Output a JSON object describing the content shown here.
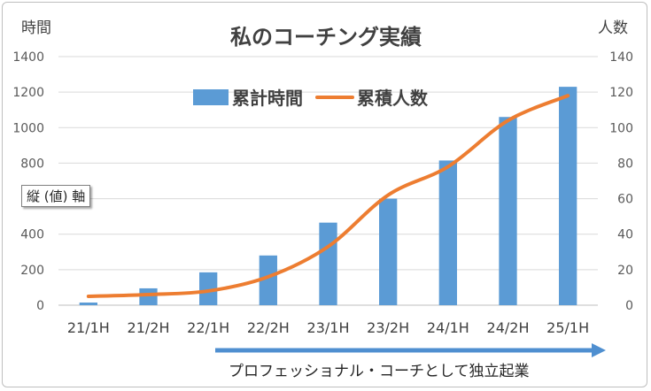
{
  "chart_data": {
    "type": "bar",
    "title": "私のコーチング実績",
    "left_axis_label": "時間",
    "right_axis_label": "人数",
    "categories": [
      "21/1H",
      "21/2H",
      "22/1H",
      "22/2H",
      "23/1H",
      "23/2H",
      "24/1H",
      "24/2H",
      "25/1H"
    ],
    "ylim": [
      0,
      1400
    ],
    "yticks": [
      0,
      200,
      400,
      600,
      800,
      1000,
      1200,
      1400
    ],
    "y2lim": [
      0,
      140
    ],
    "y2ticks": [
      0,
      20,
      40,
      60,
      80,
      100,
      120,
      140
    ],
    "grid": true,
    "legend_position": "top",
    "series": [
      {
        "name": "累計時間",
        "type": "bar",
        "axis": "left",
        "color": "#5b9bd5",
        "values": [
          15,
          95,
          185,
          280,
          465,
          600,
          815,
          1060,
          1230
        ]
      },
      {
        "name": "累積人数",
        "type": "line",
        "axis": "right",
        "color": "#ed7d31",
        "values": [
          5,
          6,
          8,
          16,
          33,
          62,
          78,
          104,
          118
        ]
      }
    ],
    "tooltip": "縦 (値) 軸",
    "annotation": "プロフェッショナル・コーチとして独立起業",
    "annotation_color": "#4f8fd0"
  }
}
